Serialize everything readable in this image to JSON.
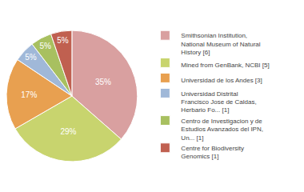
{
  "chart_data": {
    "type": "pie",
    "categories": [
      "Smithsonian Institution,\nNational Museum of Natural\nHistory [6]",
      "Mined from GenBank, NCBI [5]",
      "Universidad de los Andes [3]",
      "Universidad Distrital\nFrancisco Jose de Caldas,\nHerbario Fo... [1]",
      "Centro de Investigacion y de\nEstudios Avanzados del IPN,\nUn... [1]",
      "Centre for Biodiversity\nGenomics [1]"
    ],
    "values": [
      35,
      29,
      17,
      5,
      5,
      5
    ],
    "value_labels": [
      "35%",
      "29%",
      "17%",
      "5%",
      "5%",
      "5%"
    ],
    "colors": [
      "#d9a0a0",
      "#c8d46e",
      "#e8a050",
      "#a0b8d8",
      "#a8c060",
      "#c06050"
    ],
    "data_labels": true,
    "legend": "right"
  }
}
